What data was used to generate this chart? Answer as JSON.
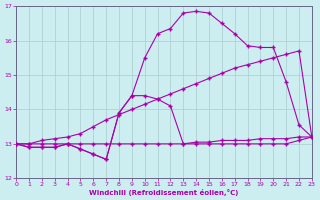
{
  "xlabel": "Windchill (Refroidissement éolien,°C)",
  "bg_color": "#cceef0",
  "grid_color": "#aacccc",
  "line_color": "#aa00aa",
  "spine_color": "#666688",
  "xlim": [
    0,
    23
  ],
  "ylim": [
    12,
    17
  ],
  "yticks": [
    12,
    13,
    14,
    15,
    16,
    17
  ],
  "xticks": [
    0,
    1,
    2,
    3,
    4,
    5,
    6,
    7,
    8,
    9,
    10,
    11,
    12,
    13,
    14,
    15,
    16,
    17,
    18,
    19,
    20,
    21,
    22,
    23
  ],
  "curve_flat_x": [
    0,
    1,
    2,
    3,
    4,
    5,
    6,
    7,
    8,
    9,
    10,
    11,
    12,
    13,
    14,
    15,
    16,
    17,
    18,
    19,
    20,
    21,
    22,
    23
  ],
  "curve_flat_y": [
    13.0,
    13.0,
    13.0,
    13.0,
    13.0,
    13.0,
    13.0,
    13.0,
    13.0,
    13.0,
    13.0,
    13.0,
    13.0,
    13.0,
    13.05,
    13.05,
    13.1,
    13.1,
    13.1,
    13.15,
    13.15,
    13.15,
    13.2,
    13.2
  ],
  "curve_diag_x": [
    0,
    1,
    2,
    3,
    4,
    5,
    6,
    7,
    8,
    9,
    10,
    11,
    12,
    13,
    14,
    15,
    16,
    17,
    18,
    19,
    20,
    21,
    22,
    23
  ],
  "curve_diag_y": [
    13.0,
    13.0,
    13.1,
    13.15,
    13.2,
    13.3,
    13.5,
    13.7,
    13.85,
    14.0,
    14.15,
    14.3,
    14.45,
    14.6,
    14.75,
    14.9,
    15.05,
    15.2,
    15.3,
    15.4,
    15.5,
    15.6,
    15.7,
    13.2
  ],
  "curve_dip_x": [
    0,
    1,
    2,
    3,
    4,
    5,
    6,
    7,
    8,
    9,
    10,
    11,
    12,
    13,
    14,
    15,
    16,
    17,
    18,
    19,
    20,
    21,
    22,
    23
  ],
  "curve_dip_y": [
    13.0,
    12.9,
    12.9,
    12.9,
    13.0,
    12.85,
    12.7,
    12.55,
    13.9,
    14.4,
    14.4,
    14.3,
    14.1,
    13.0,
    13.0,
    13.0,
    13.0,
    13.0,
    13.0,
    13.0,
    13.0,
    13.0,
    13.1,
    13.2
  ],
  "curve_peak_x": [
    0,
    1,
    2,
    3,
    4,
    5,
    6,
    7,
    8,
    9,
    10,
    11,
    12,
    13,
    14,
    15,
    16,
    17,
    18,
    19,
    20,
    21,
    22,
    23
  ],
  "curve_peak_y": [
    13.0,
    12.9,
    12.9,
    12.9,
    13.0,
    12.85,
    12.7,
    12.55,
    13.9,
    14.4,
    15.5,
    16.2,
    16.35,
    16.8,
    16.85,
    16.8,
    16.5,
    16.2,
    15.85,
    15.8,
    15.8,
    14.8,
    13.55,
    13.2
  ]
}
